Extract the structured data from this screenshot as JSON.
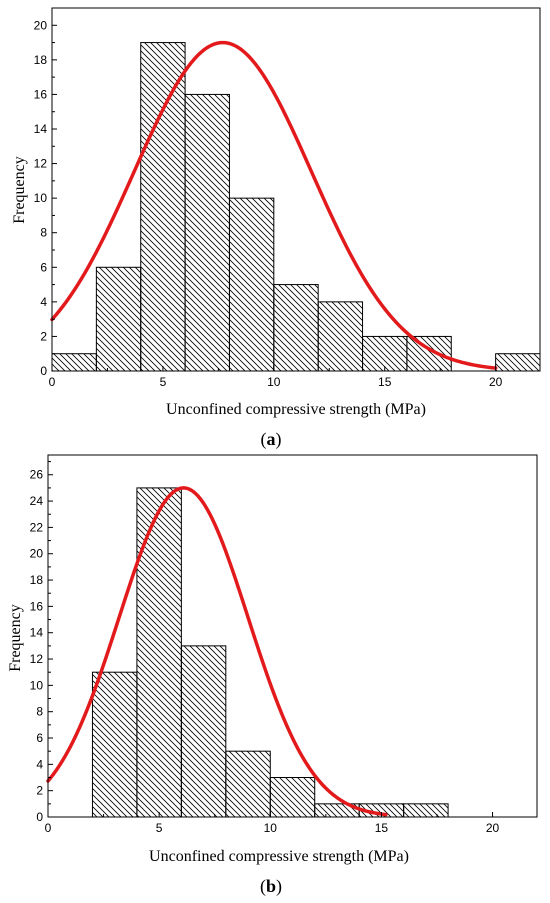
{
  "chart_data": [
    {
      "type": "bar",
      "subtype": "histogram",
      "panel_label": "a",
      "xlabel": "Unconfined compressive strength (MPa)",
      "ylabel": "Frequency",
      "xlim": [
        0,
        22
      ],
      "ylim": [
        0,
        21
      ],
      "xticks": [
        0,
        5,
        10,
        15,
        20
      ],
      "yticks": [
        0,
        2,
        4,
        6,
        8,
        10,
        12,
        14,
        16,
        18,
        20
      ],
      "bin_edges": [
        0,
        2,
        4,
        6,
        8,
        10,
        12,
        14,
        16,
        18,
        20,
        22
      ],
      "values": [
        1,
        6,
        19,
        16,
        10,
        5,
        4,
        2,
        2,
        0,
        1
      ],
      "bar_pattern": "diagonal-hatch",
      "fit_curve": {
        "type": "normal",
        "mean": 7.7,
        "sd": 4.0,
        "peak": 19,
        "color": "#e31a1c",
        "x_range": [
          0,
          20
        ]
      }
    },
    {
      "type": "bar",
      "subtype": "histogram",
      "panel_label": "b",
      "xlabel": "Unconfined compressive strength (MPa)",
      "ylabel": "Frequency",
      "xlim": [
        0,
        22
      ],
      "ylim": [
        0,
        27.5
      ],
      "xticks": [
        0,
        5,
        10,
        15,
        20
      ],
      "yticks": [
        0,
        2,
        4,
        6,
        8,
        10,
        12,
        14,
        16,
        18,
        20,
        22,
        24,
        26
      ],
      "bin_edges": [
        2,
        4,
        6,
        8,
        10,
        12,
        14,
        16,
        18
      ],
      "values": [
        11,
        25,
        13,
        5,
        3,
        1,
        1,
        1
      ],
      "bar_pattern": "diagonal-hatch",
      "fit_curve": {
        "type": "normal",
        "mean": 6.1,
        "sd": 2.9,
        "peak": 25,
        "color": "#e31a1c",
        "x_range": [
          0,
          15.2
        ]
      }
    }
  ]
}
